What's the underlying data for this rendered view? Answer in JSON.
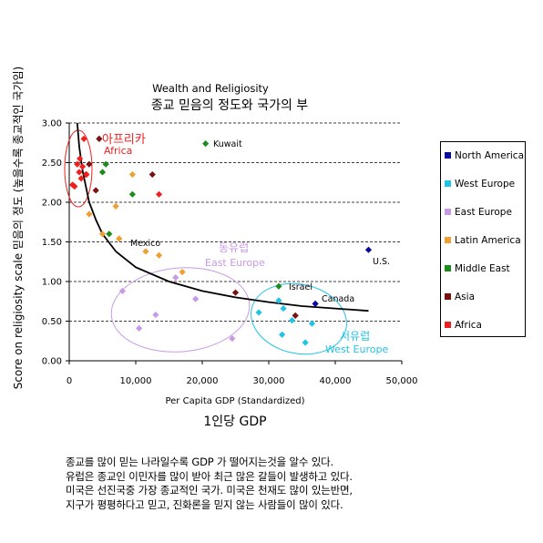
{
  "chart_data": {
    "type": "scatter",
    "title": "Wealth and Religiosity",
    "subtitle": "종교 믿음의 정도와 국가의 부",
    "xlabel": "Per Capita GDP (Standardized)",
    "xlabel_ko": "1인당 GDP",
    "ylabel": "Score on religiosity scale 믿음의 정도 (높을수록 종교적인 국가임)",
    "xlim": [
      0,
      50000
    ],
    "ylim": [
      0,
      3
    ],
    "x_ticks": [
      0,
      10000,
      20000,
      30000,
      40000,
      50000
    ],
    "x_tick_labels": [
      "0",
      "10,000",
      "20,000",
      "30,000",
      "40,000",
      "50,000"
    ],
    "y_ticks": [
      0,
      0.5,
      1,
      1.5,
      2,
      2.5,
      3
    ],
    "y_tick_labels": [
      "0.00",
      "0.50",
      "1.00",
      "1.50",
      "2.00",
      "2.50",
      "3.00"
    ],
    "grid": "horizontal dashed",
    "legend_position": "right",
    "series": [
      {
        "name": "North America",
        "color": "#0a0aa0",
        "points": [
          [
            45000,
            1.4
          ],
          [
            37000,
            0.72
          ]
        ]
      },
      {
        "name": "West Europe",
        "color": "#22c4e6",
        "points": [
          [
            28500,
            0.61
          ],
          [
            31500,
            0.76
          ],
          [
            32000,
            0.33
          ],
          [
            32200,
            0.66
          ],
          [
            33500,
            0.51
          ],
          [
            35500,
            0.23
          ],
          [
            36500,
            0.47
          ]
        ]
      },
      {
        "name": "East Europe",
        "color": "#c89ae6",
        "points": [
          [
            8000,
            0.88
          ],
          [
            10500,
            0.41
          ],
          [
            13000,
            0.58
          ],
          [
            16000,
            1.05
          ],
          [
            19000,
            0.78
          ],
          [
            24500,
            0.28
          ]
        ]
      },
      {
        "name": "Latin America",
        "color": "#f0a030",
        "points": [
          [
            3000,
            1.85
          ],
          [
            5000,
            1.6
          ],
          [
            7000,
            1.95
          ],
          [
            7500,
            1.54
          ],
          [
            9500,
            2.35
          ],
          [
            11500,
            1.38
          ],
          [
            13500,
            1.33
          ],
          [
            17000,
            1.12
          ]
        ]
      },
      {
        "name": "Middle East",
        "color": "#1c8c1c",
        "points": [
          [
            5000,
            2.38
          ],
          [
            5500,
            2.48
          ],
          [
            6000,
            1.6
          ],
          [
            9500,
            2.1
          ],
          [
            20500,
            2.74
          ],
          [
            31500,
            0.94
          ]
        ]
      },
      {
        "name": "Asia",
        "color": "#7a1010",
        "points": [
          [
            2500,
            2.35
          ],
          [
            3000,
            2.48
          ],
          [
            4000,
            2.15
          ],
          [
            4500,
            2.8
          ],
          [
            12500,
            2.35
          ],
          [
            25000,
            0.86
          ],
          [
            34000,
            0.57
          ]
        ]
      },
      {
        "name": "Africa",
        "color": "#ee2020",
        "points": [
          [
            500,
            2.22
          ],
          [
            800,
            2.2
          ],
          [
            1200,
            2.48
          ],
          [
            1500,
            2.38
          ],
          [
            1600,
            2.55
          ],
          [
            1800,
            2.3
          ],
          [
            2000,
            2.45
          ],
          [
            2200,
            2.8
          ],
          [
            2600,
            2.35
          ],
          [
            13500,
            2.1
          ]
        ]
      }
    ],
    "point_labels": [
      {
        "text": "Kuwait",
        "x": 20500,
        "y": 2.74
      },
      {
        "text": "Mexico",
        "x": 9500,
        "y": 1.48
      },
      {
        "text": "Israel",
        "x": 31500,
        "y": 0.94
      },
      {
        "text": "Canada",
        "x": 37000,
        "y": 0.72
      },
      {
        "text": "U.S.",
        "x": 45000,
        "y": 1.4
      }
    ],
    "region_labels": [
      {
        "text": "아프리카",
        "color": "#ee2020"
      },
      {
        "text": "Africa",
        "color": "#ee2020"
      },
      {
        "text": "동유럽",
        "color": "#c89ae6"
      },
      {
        "text": "East Europe",
        "color": "#c89ae6"
      },
      {
        "text": "서유럽",
        "color": "#22c4e6"
      },
      {
        "text": "West Europe",
        "color": "#22c4e6"
      }
    ],
    "trend_curve": [
      [
        1200,
        3.0
      ],
      [
        1500,
        2.7
      ],
      [
        2000,
        2.4
      ],
      [
        3000,
        2.0
      ],
      [
        4000,
        1.78
      ],
      [
        5000,
        1.6
      ],
      [
        7000,
        1.38
      ],
      [
        10000,
        1.18
      ],
      [
        15000,
        1.0
      ],
      [
        20000,
        0.88
      ],
      [
        25000,
        0.8
      ],
      [
        30000,
        0.74
      ],
      [
        35000,
        0.69
      ],
      [
        40000,
        0.66
      ],
      [
        45000,
        0.63
      ]
    ]
  },
  "caption": [
    "종교를 많이 믿는 나라일수록 GDP 가 떨어지는것을 알수 있다.",
    "유럽은 종교인 이민자를 많이 받아 최근 많은 갈들이 발생하고 있다.",
    "미국은 선진국중 가장 종교적인 국가. 미국은 천재도 많이 있는반면,",
    "지구가 평평하다고 믿고, 진화론을 믿지 않는 사람들이 많이 있다."
  ]
}
